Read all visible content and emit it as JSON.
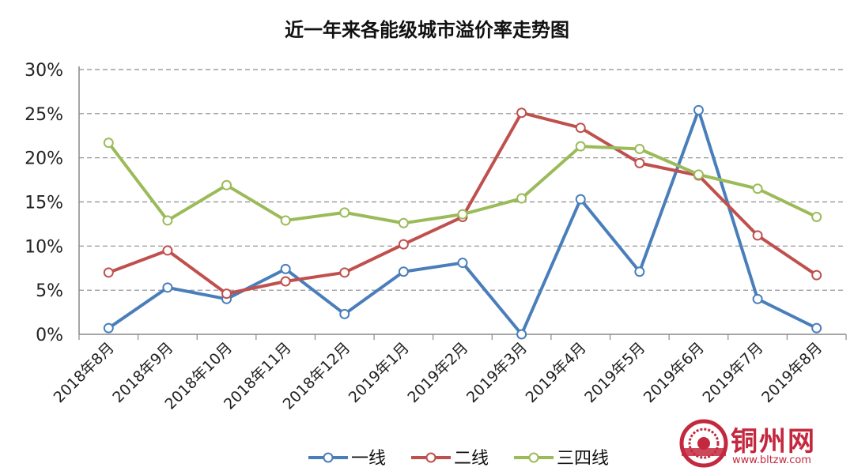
{
  "chart_data": {
    "type": "line",
    "title": "近一年来各能级城市溢价率走势图",
    "xlabel": "",
    "ylabel": "",
    "ylim": [
      0,
      30
    ],
    "yticks": [
      "0%",
      "5%",
      "10%",
      "15%",
      "20%",
      "25%",
      "30%"
    ],
    "grid": true,
    "legend_position": "bottom",
    "categories": [
      "2018年8月",
      "2018年9月",
      "2018年10月",
      "2018年11月",
      "2018年12月",
      "2019年1月",
      "2019年2月",
      "2019年3月",
      "2019年4月",
      "2019年5月",
      "2019年6月",
      "2019年7月",
      "2019年8月"
    ],
    "series": [
      {
        "name": "一线",
        "color": "#4a7ebb",
        "values": [
          0.7,
          5.3,
          4.0,
          7.4,
          2.3,
          7.1,
          8.1,
          0.0,
          15.3,
          7.1,
          25.4,
          4.0,
          0.7
        ]
      },
      {
        "name": "二线",
        "color": "#c0504d",
        "values": [
          7.0,
          9.5,
          4.6,
          6.0,
          7.0,
          10.2,
          13.3,
          25.1,
          23.4,
          19.4,
          18.0,
          11.2,
          6.7
        ]
      },
      {
        "name": "三四线",
        "color": "#9bbb59",
        "values": [
          21.7,
          12.9,
          16.9,
          12.9,
          13.8,
          12.6,
          13.6,
          15.4,
          21.3,
          21.0,
          18.1,
          16.5,
          13.3
        ]
      }
    ]
  },
  "watermark": {
    "name": "铜州网",
    "url": "www.bltzw.com"
  }
}
